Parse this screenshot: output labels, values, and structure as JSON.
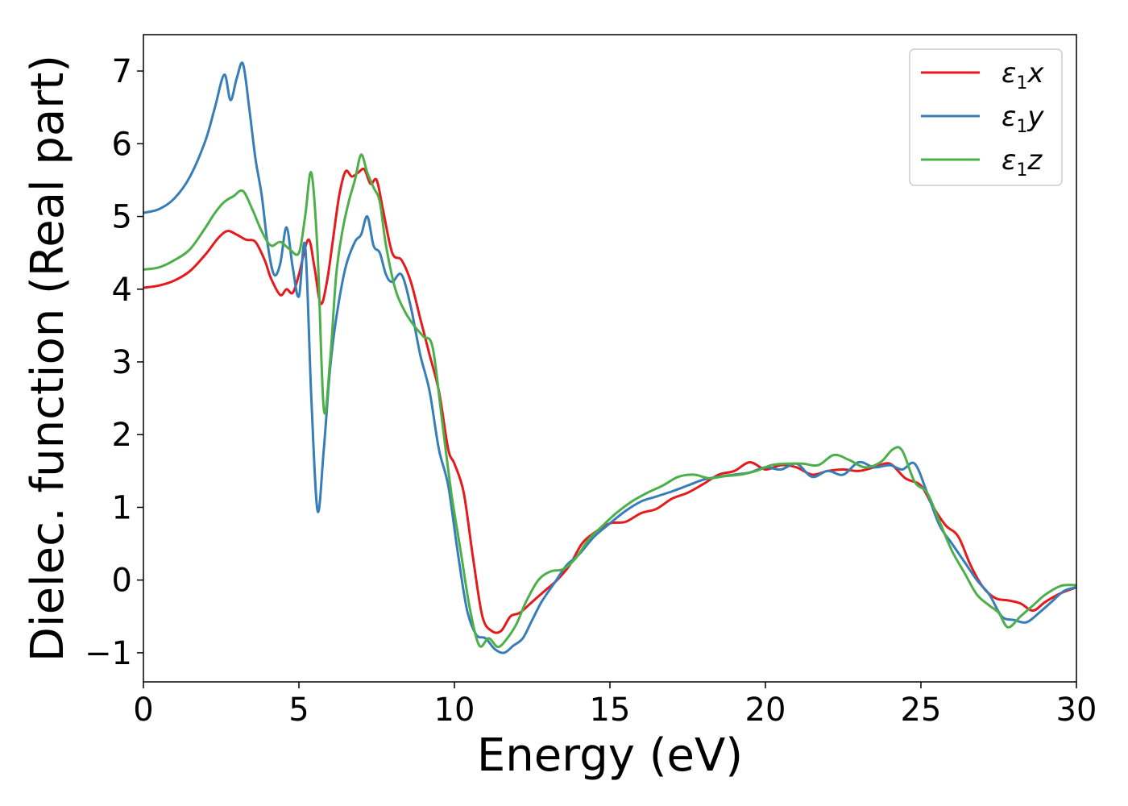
{
  "chart_data": {
    "type": "line",
    "xlabel": "Energy (eV)",
    "ylabel": "Dielec. function (Real part)",
    "xlim": [
      0,
      30
    ],
    "ylim": [
      -1.4,
      7.5
    ],
    "xticks": [
      0,
      5,
      10,
      15,
      20,
      25,
      30
    ],
    "xtick_labels": [
      "0",
      "5",
      "10",
      "15",
      "20",
      "25",
      "30"
    ],
    "yticks": [
      -1,
      0,
      1,
      2,
      3,
      4,
      5,
      6,
      7
    ],
    "ytick_labels": [
      "−1",
      "0",
      "1",
      "2",
      "3",
      "4",
      "5",
      "6",
      "7"
    ],
    "grid": false,
    "legend_position": "top-right",
    "series": [
      {
        "name": "ε",
        "sub": "1",
        "var": "x",
        "color": "#e41a1c",
        "x": [
          0,
          0.5,
          1,
          1.5,
          2,
          2.4,
          2.7,
          3,
          3.3,
          3.6,
          3.9,
          4.1,
          4.4,
          4.6,
          4.8,
          5.0,
          5.3,
          5.5,
          5.7,
          5.9,
          6.1,
          6.3,
          6.5,
          6.7,
          6.9,
          7.1,
          7.3,
          7.5,
          7.7,
          8.0,
          8.3,
          8.6,
          8.9,
          9.2,
          9.5,
          9.8,
          10.0,
          10.3,
          10.6,
          10.9,
          11.2,
          11.5,
          11.8,
          12.1,
          12.5,
          12.9,
          13.3,
          13.7,
          14.1,
          14.5,
          15.0,
          15.5,
          16.0,
          16.5,
          17.0,
          17.5,
          18.0,
          18.5,
          19.0,
          19.5,
          20.0,
          20.5,
          21.0,
          21.5,
          22.0,
          22.5,
          23.0,
          23.5,
          24.0,
          24.5,
          25.0,
          25.4,
          25.8,
          26.2,
          26.6,
          27.0,
          27.4,
          27.8,
          28.2,
          28.6,
          29.0,
          29.5,
          30.0
        ],
        "y": [
          4.02,
          4.05,
          4.12,
          4.25,
          4.48,
          4.7,
          4.8,
          4.75,
          4.68,
          4.65,
          4.4,
          4.15,
          3.92,
          4.0,
          3.95,
          4.2,
          4.68,
          4.3,
          3.8,
          4.1,
          4.7,
          5.3,
          5.62,
          5.55,
          5.6,
          5.65,
          5.45,
          5.5,
          5.1,
          4.5,
          4.4,
          4.1,
          3.6,
          3.1,
          2.6,
          1.8,
          1.6,
          1.2,
          0.3,
          -0.5,
          -0.7,
          -0.7,
          -0.5,
          -0.45,
          -0.3,
          -0.15,
          0.0,
          0.2,
          0.5,
          0.65,
          0.78,
          0.8,
          0.92,
          0.98,
          1.12,
          1.2,
          1.32,
          1.45,
          1.5,
          1.62,
          1.52,
          1.58,
          1.55,
          1.45,
          1.5,
          1.52,
          1.5,
          1.55,
          1.6,
          1.4,
          1.3,
          1.0,
          0.75,
          0.6,
          0.2,
          -0.1,
          -0.25,
          -0.28,
          -0.32,
          -0.42,
          -0.3,
          -0.18,
          -0.1
        ]
      },
      {
        "name": "ε",
        "sub": "1",
        "var": "y",
        "color": "#377eb8",
        "x": [
          0,
          0.5,
          1,
          1.5,
          2,
          2.3,
          2.6,
          2.8,
          3.0,
          3.2,
          3.4,
          3.6,
          3.8,
          4.0,
          4.2,
          4.4,
          4.6,
          4.8,
          5.0,
          5.2,
          5.4,
          5.6,
          5.8,
          6.0,
          6.2,
          6.5,
          6.8,
          7.0,
          7.2,
          7.4,
          7.6,
          7.8,
          8.0,
          8.3,
          8.6,
          8.9,
          9.2,
          9.5,
          9.8,
          10.1,
          10.4,
          10.7,
          11.0,
          11.3,
          11.6,
          11.9,
          12.2,
          12.5,
          12.8,
          13.2,
          13.6,
          14.0,
          14.5,
          15.0,
          15.5,
          16.0,
          16.5,
          17.0,
          17.5,
          18.0,
          18.5,
          19.0,
          19.5,
          20.0,
          20.5,
          21.0,
          21.5,
          22.0,
          22.5,
          23.0,
          23.5,
          24.0,
          24.4,
          24.8,
          25.2,
          25.6,
          26.0,
          26.4,
          26.8,
          27.2,
          27.6,
          28.0,
          28.4,
          28.8,
          29.2,
          29.6,
          30.0
        ],
        "y": [
          5.05,
          5.1,
          5.25,
          5.55,
          6.05,
          6.5,
          6.95,
          6.6,
          6.9,
          7.1,
          6.5,
          5.8,
          5.3,
          4.6,
          4.2,
          4.35,
          4.85,
          4.3,
          3.9,
          4.6,
          2.5,
          0.95,
          1.8,
          2.9,
          3.6,
          4.3,
          4.65,
          4.75,
          5.0,
          4.6,
          4.5,
          4.2,
          4.1,
          4.2,
          3.75,
          3.1,
          2.6,
          1.8,
          1.3,
          0.4,
          -0.4,
          -0.75,
          -0.8,
          -0.95,
          -1.0,
          -0.9,
          -0.8,
          -0.55,
          -0.3,
          -0.05,
          0.2,
          0.35,
          0.6,
          0.78,
          0.95,
          1.08,
          1.15,
          1.22,
          1.3,
          1.38,
          1.42,
          1.45,
          1.48,
          1.55,
          1.52,
          1.6,
          1.42,
          1.5,
          1.45,
          1.62,
          1.55,
          1.58,
          1.52,
          1.6,
          1.2,
          0.75,
          0.5,
          0.25,
          0.0,
          -0.2,
          -0.5,
          -0.55,
          -0.58,
          -0.45,
          -0.3,
          -0.15,
          -0.1
        ]
      },
      {
        "name": "ε",
        "sub": "1",
        "var": "z",
        "color": "#4daf4a",
        "x": [
          0,
          0.5,
          1,
          1.5,
          2,
          2.3,
          2.6,
          2.9,
          3.2,
          3.5,
          3.8,
          4.1,
          4.4,
          4.7,
          5.0,
          5.2,
          5.4,
          5.6,
          5.8,
          6.0,
          6.2,
          6.4,
          6.6,
          6.8,
          7.0,
          7.2,
          7.4,
          7.6,
          7.8,
          8.1,
          8.4,
          8.7,
          9.0,
          9.3,
          9.6,
          9.9,
          10.2,
          10.5,
          10.8,
          11.1,
          11.4,
          11.7,
          12.0,
          12.3,
          12.7,
          13.1,
          13.5,
          13.9,
          14.3,
          14.7,
          15.2,
          15.7,
          16.2,
          16.7,
          17.2,
          17.7,
          18.2,
          18.7,
          19.2,
          19.7,
          20.2,
          20.7,
          21.2,
          21.7,
          22.2,
          22.7,
          23.2,
          23.7,
          24.1,
          24.4,
          24.8,
          25.2,
          25.6,
          26.0,
          26.4,
          26.8,
          27.2,
          27.5,
          27.8,
          28.2,
          28.6,
          29.0,
          29.5,
          30.0
        ],
        "y": [
          4.27,
          4.3,
          4.4,
          4.55,
          4.85,
          5.05,
          5.2,
          5.28,
          5.35,
          5.1,
          4.8,
          4.6,
          4.65,
          4.55,
          4.5,
          5.0,
          5.6,
          4.5,
          2.35,
          3.0,
          4.2,
          4.8,
          5.2,
          5.5,
          5.85,
          5.6,
          5.4,
          5.2,
          4.6,
          4.0,
          3.7,
          3.5,
          3.35,
          3.2,
          2.2,
          1.2,
          0.4,
          -0.4,
          -0.9,
          -0.8,
          -0.92,
          -0.8,
          -0.6,
          -0.3,
          0.0,
          0.12,
          0.15,
          0.3,
          0.55,
          0.72,
          0.92,
          1.08,
          1.2,
          1.3,
          1.42,
          1.45,
          1.4,
          1.43,
          1.45,
          1.5,
          1.58,
          1.6,
          1.6,
          1.58,
          1.72,
          1.65,
          1.55,
          1.62,
          1.8,
          1.78,
          1.35,
          1.2,
          0.8,
          0.4,
          0.1,
          -0.2,
          -0.35,
          -0.45,
          -0.65,
          -0.5,
          -0.35,
          -0.2,
          -0.08,
          -0.07
        ]
      }
    ]
  }
}
